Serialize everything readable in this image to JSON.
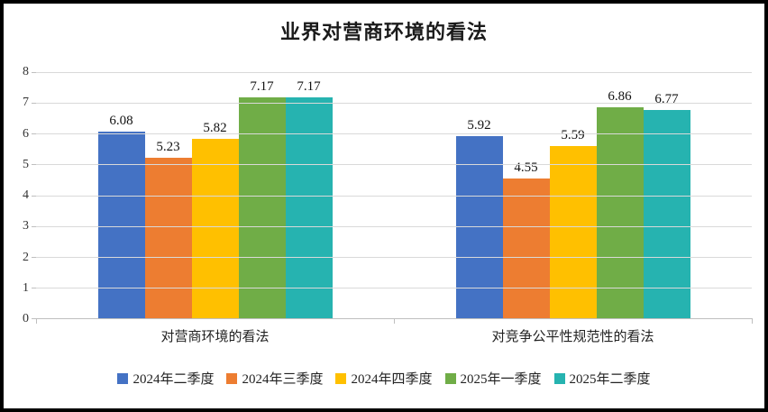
{
  "title": "业界对营商环境的看法",
  "chart_data": {
    "type": "bar",
    "title": "业界对营商环境的看法",
    "categories": [
      "对营商环境的看法",
      "对竞争公平性规范性的看法"
    ],
    "series": [
      {
        "name": "2024年二季度",
        "color": "#4472C4",
        "values": [
          6.08,
          5.92
        ]
      },
      {
        "name": "2024年三季度",
        "color": "#ED7D31",
        "values": [
          5.23,
          4.55
        ]
      },
      {
        "name": "2024年四季度",
        "color": "#FFC000",
        "values": [
          5.82,
          5.59
        ]
      },
      {
        "name": "2025年一季度",
        "color": "#70AD47",
        "values": [
          7.17,
          6.86
        ]
      },
      {
        "name": "2025年二季度",
        "color": "#26B3B0",
        "values": [
          7.17,
          6.77
        ]
      }
    ],
    "ylim": [
      0,
      8
    ],
    "yticks": [
      0,
      1,
      2,
      3,
      4,
      5,
      6,
      7,
      8
    ],
    "grid": true,
    "legend_position": "bottom",
    "gridline_color": "#d9d9d9",
    "axis_color": "#bfbfbf"
  }
}
